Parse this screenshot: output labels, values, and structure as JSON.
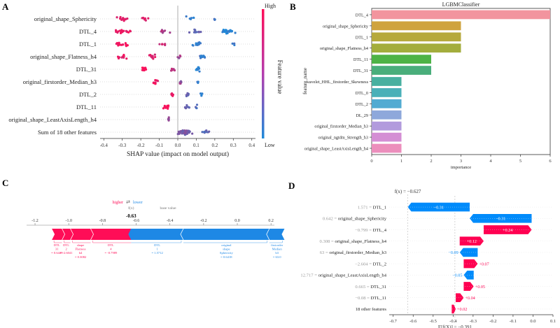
{
  "panel_labels": [
    "A",
    "B",
    "C",
    "D"
  ],
  "chart_data": [
    {
      "id": "A",
      "type": "scatter",
      "subtype": "beeswarm",
      "xlabel": "SHAP value (impact on model output)",
      "x_ticks": [
        -0.4,
        -0.3,
        -0.2,
        -0.1,
        0.0,
        0.1,
        0.2,
        0.3,
        0.4
      ],
      "xlim": [
        -0.42,
        0.42
      ],
      "features": [
        "original_shape_Sphericity",
        "DTL_4",
        "DTL_1",
        "original_shape_Flatness_h4",
        "DTL_31",
        "original_firstorder_Median_h3",
        "DTL_2",
        "DTL_11",
        "original_shape_LeastAxisLength_h4",
        "Sum of 18 other features"
      ],
      "clusters": [
        [
          {
            "c": -0.3,
            "s": 0.06,
            "n": 16,
            "v": 0.9
          },
          {
            "c": -0.18,
            "s": 0.03,
            "n": 8,
            "v": 0.85
          },
          {
            "c": 0.07,
            "s": 0.04,
            "n": 6,
            "v": 0.1
          },
          {
            "c": 0.2,
            "s": 0.02,
            "n": 3,
            "v": 0.15
          }
        ],
        [
          {
            "c": -0.3,
            "s": 0.07,
            "n": 22,
            "v": 0.9
          },
          {
            "c": -0.08,
            "s": 0.04,
            "n": 8,
            "v": 0.6
          },
          {
            "c": 0.1,
            "s": 0.06,
            "n": 10,
            "v": 0.3
          },
          {
            "c": 0.27,
            "s": 0.05,
            "n": 26,
            "v": 0.05
          }
        ],
        [
          {
            "c": -0.3,
            "s": 0.05,
            "n": 16,
            "v": 0.95
          },
          {
            "c": -0.08,
            "s": 0.03,
            "n": 6,
            "v": 0.8
          },
          {
            "c": 0.1,
            "s": 0.05,
            "n": 14,
            "v": 0.1
          },
          {
            "c": 0.3,
            "s": 0.02,
            "n": 3,
            "v": 0.1
          }
        ],
        [
          {
            "c": -0.3,
            "s": 0.04,
            "n": 10,
            "v": 0.9
          },
          {
            "c": -0.14,
            "s": 0.03,
            "n": 12,
            "v": 0.85
          },
          {
            "c": 0.01,
            "s": 0.02,
            "n": 5,
            "v": 0.6
          },
          {
            "c": 0.13,
            "s": 0.02,
            "n": 14,
            "v": 0.1
          }
        ],
        [
          {
            "c": -0.18,
            "s": 0.02,
            "n": 12,
            "v": 0.95
          },
          {
            "c": -0.03,
            "s": 0.02,
            "n": 6,
            "v": 0.7
          },
          {
            "c": 0.11,
            "s": 0.015,
            "n": 12,
            "v": 0.05
          }
        ],
        [
          {
            "c": -0.12,
            "s": 0.02,
            "n": 10,
            "v": 0.9
          },
          {
            "c": 0.02,
            "s": 0.02,
            "n": 8,
            "v": 0.5
          },
          {
            "c": 0.11,
            "s": 0.01,
            "n": 3,
            "v": 0.1
          }
        ],
        [
          {
            "c": -0.03,
            "s": 0.01,
            "n": 8,
            "v": 0.9
          },
          {
            "c": 0.05,
            "s": 0.015,
            "n": 6,
            "v": 0.3
          },
          {
            "c": 0.13,
            "s": 0.01,
            "n": 6,
            "v": 0.1
          }
        ],
        [
          {
            "c": -0.06,
            "s": 0.02,
            "n": 10,
            "v": 0.95
          },
          {
            "c": 0.05,
            "s": 0.02,
            "n": 10,
            "v": 0.3
          },
          {
            "c": 0.1,
            "s": 0.01,
            "n": 4,
            "v": 0.2
          }
        ],
        [
          {
            "c": -0.05,
            "s": 0.003,
            "n": 6,
            "v": 0.5
          }
        ],
        [
          {
            "c": 0.03,
            "s": 0.06,
            "n": 50,
            "v": 0.4
          },
          {
            "c": 0.15,
            "s": 0.03,
            "n": 12,
            "v": 0.3
          }
        ]
      ],
      "colorbar": {
        "label": "Feature value",
        "high": "High",
        "low": "Low",
        "color_low": "#1f8ad9",
        "color_high": "#ff0d57",
        "color_mid": "#b43dae"
      }
    },
    {
      "id": "B",
      "type": "bar",
      "orientation": "horizontal",
      "title": "LGBMClassifier",
      "xlabel": "importance",
      "ylabel": "feature_name",
      "categories": [
        "DTL_4",
        "original_shape_Sphericity",
        "DTL_1",
        "original_shape_Flatness_h4",
        "DTL_11",
        "DTL_31",
        "wavelet_HHL_firstorder_Skewness",
        "DTL_0",
        "DTL_2",
        "DL_29",
        "original_firstorder_Median_h3",
        "original_ngtdm_Strength_h3",
        "original_shape_LeastAxisLength_h4"
      ],
      "values": [
        6,
        3,
        3,
        3,
        2,
        2,
        1,
        1,
        1,
        1,
        1,
        1,
        1
      ],
      "colors": [
        "#f2949e",
        "#cfa33e",
        "#b6a93c",
        "#a3ad3c",
        "#4eb346",
        "#4aae7b",
        "#48b0a0",
        "#4ab0b8",
        "#52abd2",
        "#8ea8db",
        "#b29bdd",
        "#d48ed4",
        "#ec8ebc"
      ],
      "x_ticks": [
        0,
        1,
        2,
        3,
        4,
        5,
        6
      ],
      "xlim": [
        0,
        6
      ]
    },
    {
      "id": "C",
      "type": "bar",
      "subtype": "force_plot",
      "legend_higher": "higher",
      "legend_lower": "lower",
      "legend_arrows": "⇄",
      "fx_label": "f(x)",
      "base_label": "base value",
      "fx_value": "-0.63",
      "x_ticks": [
        -1.2,
        -1.0,
        -0.8,
        -0.6,
        -0.4,
        -0.2,
        0.0,
        0.2
      ],
      "xlim": [
        -1.25,
        0.22
      ],
      "fx": -0.63,
      "positive_segments": [
        {
          "w": 0.06,
          "label": [
            "DTL",
            "31",
            "= 0.6449"
          ]
        },
        {
          "w": 0.05,
          "label": [
            "DTL",
            "2",
            "= -2.6041"
          ]
        },
        {
          "w": 0.12,
          "label": [
            "shape",
            "Flatness",
            "h4",
            "= 0.3082"
          ]
        },
        {
          "w": 0.24,
          "label": [
            "DTL",
            "4",
            "= -0.7989"
          ]
        }
      ],
      "negative_segments": [
        {
          "w": 0.31,
          "label": [
            "DTL",
            "1",
            "= 1.5712"
          ]
        },
        {
          "w": 0.51,
          "label": [
            "original",
            "shape",
            "Sphericity",
            "= 0.6418"
          ]
        },
        {
          "w": 0.09,
          "label": [
            "firstorder",
            "Median",
            "h3",
            "= 63.0"
          ]
        }
      ]
    },
    {
      "id": "D",
      "type": "bar",
      "subtype": "waterfall",
      "fx_label": "f(x) = −0.627",
      "ex_label": "E[f(X)] = −0.391",
      "fx": -0.627,
      "ex": -0.391,
      "x_ticks": [
        -0.7,
        -0.6,
        -0.5,
        -0.4,
        -0.3,
        -0.2,
        -0.1,
        0.0,
        0.1
      ],
      "xlim": [
        -0.72,
        0.1
      ],
      "rows": [
        {
          "value": "1.571",
          "feature": "DTL_1",
          "shap": -0.31,
          "text": "−0.31"
        },
        {
          "value": "0.642",
          "feature": "original_shape_Sphericity",
          "shap": -0.31,
          "text": "−0.31"
        },
        {
          "value": "−0.799",
          "feature": "DTL_4",
          "shap": 0.24,
          "text": "+0.24"
        },
        {
          "value": "0.308",
          "feature": "original_shape_Flatness_h4",
          "shap": 0.12,
          "text": "+0.12"
        },
        {
          "value": "63",
          "feature": "original_firstorder_Median_h3",
          "shap": -0.09,
          "text": "−0.09"
        },
        {
          "value": "−2.604",
          "feature": "DTL_2",
          "shap": 0.07,
          "text": "+0.07"
        },
        {
          "value": "12.717",
          "feature": "original_shape_LeastAxisLength_h4",
          "shap": -0.05,
          "text": "−0.05"
        },
        {
          "value": "0.665",
          "feature": "DTL_31",
          "shap": 0.05,
          "text": "+0.05"
        },
        {
          "value": "−0.08",
          "feature": "DTL_11",
          "shap": 0.04,
          "text": "+0.04"
        },
        {
          "value": "",
          "feature": "18 other features",
          "shap": 0.02,
          "text": "+0.02"
        }
      ],
      "pos_color": "#ff0051",
      "neg_color": "#008bfb"
    }
  ]
}
